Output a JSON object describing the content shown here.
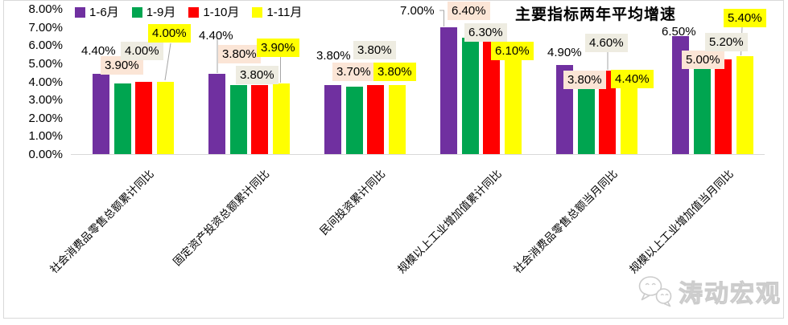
{
  "title": "主要指标两年平均增速",
  "legend": {
    "items": [
      {
        "label": "1-6月",
        "color": "#7030A0"
      },
      {
        "label": "1-9月",
        "color": "#00A550"
      },
      {
        "label": "1-10月",
        "color": "#FF0000"
      },
      {
        "label": "1-11月",
        "color": "#FFFF00"
      }
    ]
  },
  "watermark": {
    "text": "涛动宏观",
    "icon": "wechat-icon"
  },
  "chart_data": {
    "type": "bar",
    "title": "主要指标两年平均增速",
    "categories": [
      "社会消费品零售总额累计同比",
      "固定资产投资总额累计同比",
      "民间投资累计同比",
      "规模以上工业增加值累计同比",
      "社会消费品零售总额当月同比",
      "规模以上工业增加值当月同比"
    ],
    "series": [
      {
        "name": "1-6月",
        "color": "#7030A0",
        "values": [
          4.4,
          4.4,
          3.8,
          7.0,
          4.9,
          6.5
        ]
      },
      {
        "name": "1-9月",
        "color": "#00A550",
        "values": [
          3.9,
          3.8,
          3.7,
          6.4,
          3.8,
          5.0
        ]
      },
      {
        "name": "1-10月",
        "color": "#FF0000",
        "values": [
          4.0,
          3.8,
          3.8,
          6.3,
          4.6,
          5.2
        ]
      },
      {
        "name": "1-11月",
        "color": "#FFFF00",
        "values": [
          4.0,
          3.9,
          3.8,
          6.1,
          4.4,
          5.4
        ]
      }
    ],
    "data_label_format": "0.00%",
    "label_backgrounds": [
      null,
      "#FBE5D6",
      "#EEECE1",
      "#FFFF00"
    ],
    "y_ticks": [
      "8.00%",
      "7.00%",
      "6.00%",
      "5.00%",
      "4.00%",
      "3.00%",
      "2.00%",
      "1.00%",
      "0.00%"
    ],
    "ylim": [
      0,
      8
    ],
    "gridlines": false,
    "legend_position": "top-left",
    "axis_color": "#D9D9D9",
    "leader_line_color": "#A6A6A6"
  }
}
